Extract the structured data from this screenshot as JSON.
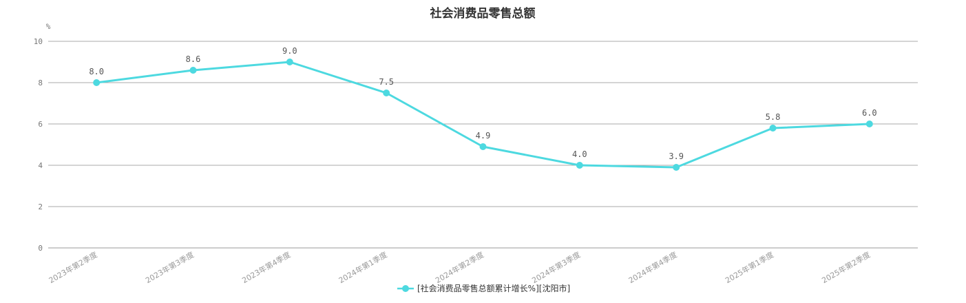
{
  "chart_data": {
    "type": "line",
    "title": "社会消费品零售总额",
    "y_unit": "%",
    "ylim": [
      0,
      10
    ],
    "yticks": [
      0,
      2,
      4,
      6,
      8,
      10
    ],
    "grid": true,
    "legend_position": "bottom-center",
    "categories": [
      "2023年第2季度",
      "2023年第3季度",
      "2023年第4季度",
      "2024年第1季度",
      "2024年第2季度",
      "2024年第3季度",
      "2024年第4季度",
      "2025年第1季度",
      "2025年第2季度"
    ],
    "series": [
      {
        "name": "[社会消费品零售总额累计增长%][沈阳市]",
        "color": "#4dd9e0",
        "values": [
          8.0,
          8.6,
          9.0,
          7.5,
          4.9,
          4.0,
          3.9,
          5.8,
          6.0
        ],
        "labels": [
          "8.0",
          "8.6",
          "9.0",
          "7.5",
          "4.9",
          "4.0",
          "3.9",
          "5.8",
          "6.0"
        ]
      }
    ]
  }
}
